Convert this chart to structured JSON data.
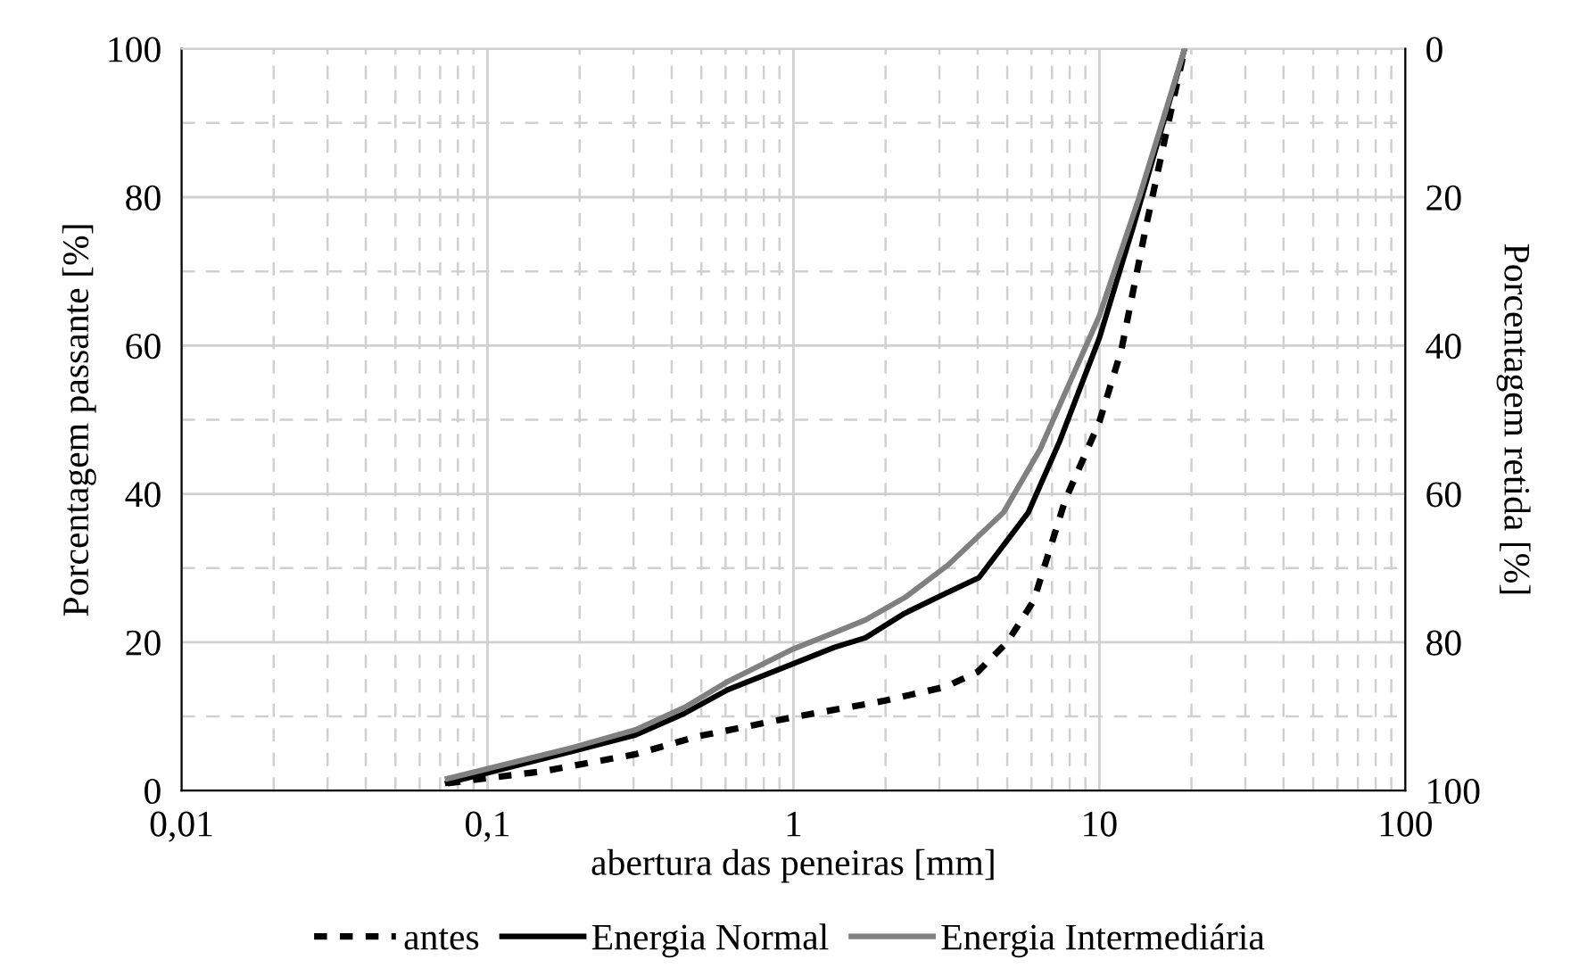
{
  "chart_data": {
    "type": "line",
    "xlabel": "abertura das peneiras [mm]",
    "ylabel": "Porcentagem passante [%]",
    "y2label": "Porcentagem retida [%]",
    "log": "x",
    "xlim": [
      0.01,
      100
    ],
    "xticks": [
      {
        "value": 0.01,
        "label": "0,01"
      },
      {
        "value": 0.1,
        "label": "0,1"
      },
      1,
      10,
      100
    ],
    "ylim": [
      0,
      100
    ],
    "yticks": [
      0,
      20,
      40,
      60,
      80,
      100
    ],
    "y2lim": [
      100,
      0
    ],
    "y2ticks": [
      100,
      80,
      60,
      40,
      20,
      0
    ],
    "grid": true,
    "legend": "bottom",
    "marker": "none",
    "series": [
      {
        "name": "antes",
        "color": "#000000",
        "line_style": "dashed",
        "x": [
          0.074,
          0.152,
          0.305,
          0.486,
          1,
          1.98,
          3.15,
          4.0,
          5.0,
          6.1,
          7.74,
          10,
          11.8,
          14.2,
          16.3,
          19
        ],
        "values": [
          1,
          2.6,
          4.9,
          7.3,
          9.9,
          12.1,
          14,
          16,
          20,
          25.6,
          39.2,
          49.7,
          59.4,
          76,
          87.5,
          100
        ]
      },
      {
        "name": "Energia Normal",
        "color": "#000000",
        "line_style": "solid",
        "x": [
          0.074,
          0.19,
          0.305,
          0.44,
          0.61,
          1,
          1.36,
          1.72,
          2.31,
          3.15,
          4.04,
          5.86,
          7.4,
          10,
          12.9,
          19
        ],
        "values": [
          1,
          5.3,
          7.5,
          10.4,
          13.6,
          17.1,
          19.3,
          20.6,
          23.9,
          26.6,
          28.7,
          37.5,
          47,
          61,
          76,
          100
        ]
      },
      {
        "name": "Energia Intermediária",
        "color": "#808080",
        "line_style": "solid",
        "x": [
          0.074,
          0.19,
          0.305,
          0.44,
          0.61,
          1,
          1.36,
          1.72,
          2.31,
          3.2,
          4.86,
          6.4,
          10,
          13.5,
          19
        ],
        "values": [
          1.6,
          5.8,
          8.2,
          11.2,
          14.7,
          19.1,
          21.3,
          23,
          26,
          30.4,
          37.5,
          46,
          64,
          80,
          100
        ]
      }
    ]
  }
}
